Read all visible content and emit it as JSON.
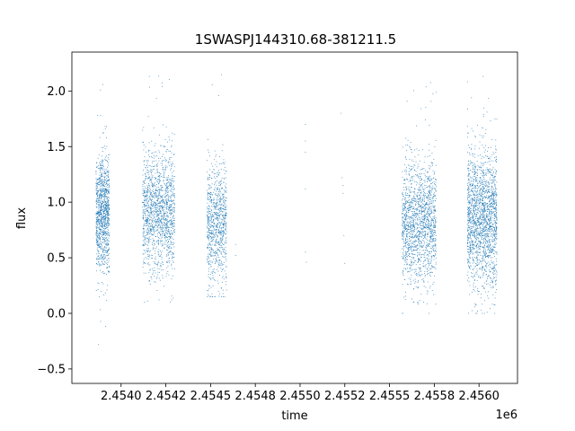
{
  "chart_data": {
    "type": "scatter",
    "title": "1SWASPJ144310.68-381211.5",
    "xlabel": "time",
    "ylabel": "flux",
    "x_offset_label": "1e6",
    "xlim": [
      2453725,
      2456215
    ],
    "ylim": [
      -0.63,
      2.35
    ],
    "xticks": [
      {
        "value": 2454000,
        "label": "2.4540"
      },
      {
        "value": 2454250,
        "label": "2.4542"
      },
      {
        "value": 2454500,
        "label": "2.4545"
      },
      {
        "value": 2454750,
        "label": "2.4548"
      },
      {
        "value": 2455000,
        "label": "2.4550"
      },
      {
        "value": 2455250,
        "label": "2.4552"
      },
      {
        "value": 2455500,
        "label": "2.4555"
      },
      {
        "value": 2455750,
        "label": "2.4558"
      },
      {
        "value": 2456000,
        "label": "2.4560"
      }
    ],
    "yticks": [
      {
        "value": -0.5,
        "label": "−0.5"
      },
      {
        "value": 0.0,
        "label": "0.0"
      },
      {
        "value": 0.5,
        "label": "0.5"
      },
      {
        "value": 1.0,
        "label": "1.0"
      },
      {
        "value": 1.5,
        "label": "1.5"
      },
      {
        "value": 2.0,
        "label": "2.0"
      }
    ],
    "grid": false,
    "point_color": "#1f77b4",
    "series": [
      {
        "segments": [
          {
            "x_start": 2453860,
            "x_end": 2453935,
            "flux_center": 0.9,
            "flux_spread": 0.28,
            "flux_min": -0.5,
            "flux_max": 2.17,
            "density": 1100
          },
          {
            "x_start": 2454120,
            "x_end": 2454300,
            "flux_center": 0.92,
            "flux_spread": 0.3,
            "flux_min": 0.1,
            "flux_max": 2.2,
            "density": 1500
          },
          {
            "x_start": 2454480,
            "x_end": 2454590,
            "flux_center": 0.8,
            "flux_spread": 0.3,
            "flux_min": 0.15,
            "flux_max": 2.2,
            "density": 900
          },
          {
            "x_start": 2455570,
            "x_end": 2455760,
            "flux_center": 0.82,
            "flux_spread": 0.3,
            "flux_min": 0.0,
            "flux_max": 2.15,
            "density": 1600
          },
          {
            "x_start": 2455935,
            "x_end": 2456100,
            "flux_center": 0.85,
            "flux_spread": 0.33,
            "flux_min": 0.0,
            "flux_max": 2.2,
            "density": 1900
          }
        ],
        "sparse_points": [
          {
            "x": 2454640,
            "y": 0.62
          },
          {
            "x": 2454640,
            "y": 0.52
          },
          {
            "x": 2455030,
            "y": 1.7
          },
          {
            "x": 2455030,
            "y": 1.55
          },
          {
            "x": 2455030,
            "y": 1.45
          },
          {
            "x": 2455030,
            "y": 1.12
          },
          {
            "x": 2455030,
            "y": 0.55
          },
          {
            "x": 2455035,
            "y": 0.46
          },
          {
            "x": 2455230,
            "y": 1.8
          },
          {
            "x": 2455235,
            "y": 1.22
          },
          {
            "x": 2455240,
            "y": 1.15
          },
          {
            "x": 2455240,
            "y": 1.08
          },
          {
            "x": 2455245,
            "y": 0.7
          },
          {
            "x": 2455250,
            "y": 0.45
          }
        ]
      }
    ]
  }
}
